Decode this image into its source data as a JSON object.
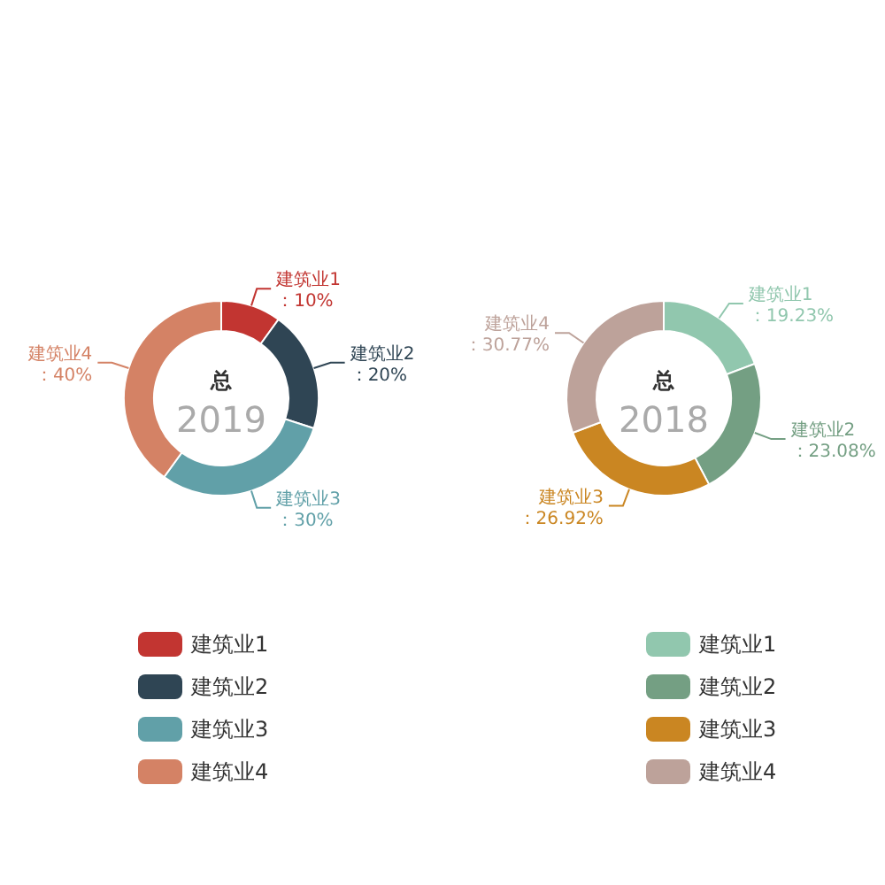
{
  "chart_data": [
    {
      "type": "donut",
      "title": "总",
      "subtitle": "2019",
      "categories": [
        "建筑业1",
        "建筑业2",
        "建筑业3",
        "建筑业4"
      ],
      "values": [
        10,
        20,
        30,
        40
      ],
      "colors": [
        "#c23531",
        "#2f4554",
        "#61a0a8",
        "#d48265"
      ],
      "value_labels": [
        "建筑业1：10%",
        "建筑业2：20%",
        "建筑业3：30%",
        "建筑业4：40%"
      ],
      "legend": "bottom"
    },
    {
      "type": "donut",
      "title": "总",
      "subtitle": "2018",
      "categories": [
        "建筑业1",
        "建筑业2",
        "建筑业3",
        "建筑业4"
      ],
      "values": [
        19.23,
        23.08,
        26.92,
        30.77
      ],
      "colors": [
        "#91c7ae",
        "#749f83",
        "#ca8622",
        "#bda29a"
      ],
      "value_labels": [
        "建筑业1：19.23%",
        "建筑业2：23.08%",
        "建筑业3：26.92%",
        "建筑业4：30.77%"
      ],
      "legend": "bottom"
    }
  ]
}
